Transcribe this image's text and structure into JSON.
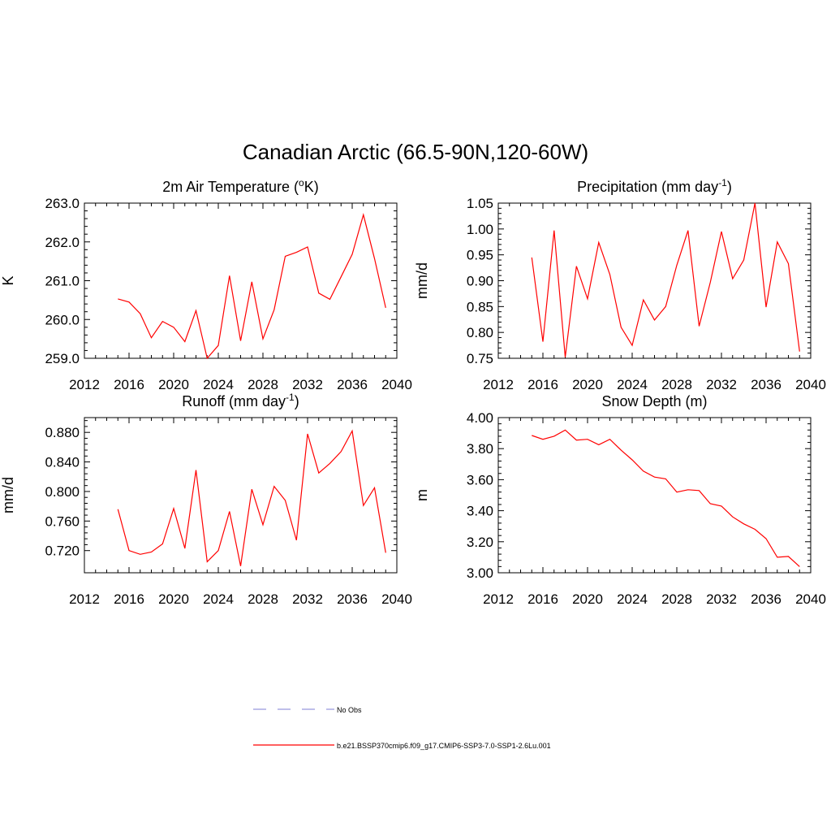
{
  "figure": {
    "title": "Canadian Arctic (66.5-90N,120-60W)"
  },
  "legend": {
    "entries": [
      {
        "label": "No Obs",
        "color": "#9999dd",
        "style": "dashed"
      },
      {
        "label": "b.e21.BSSP370cmip6.f09_g17.CMIP6-SSP3-7.0-SSP1-2.6Lu.001",
        "color": "#ff0000",
        "style": "solid"
      }
    ]
  },
  "chart_data": [
    {
      "type": "line",
      "title": "2m Air Temperature (",
      "title_sup": "o",
      "title_tail": "K)",
      "ylabel": "K",
      "xlim": [
        2012,
        2040
      ],
      "ylim": [
        259.0,
        263.0
      ],
      "xticks": [
        "2012",
        "2016",
        "2020",
        "2024",
        "2028",
        "2032",
        "2036",
        "2040"
      ],
      "yticks": [
        "259.0",
        "260.0",
        "261.0",
        "262.0",
        "263.0"
      ],
      "series": [
        {
          "color": "#ff0000",
          "x": [
            2015,
            2016,
            2017,
            2018,
            2019,
            2020,
            2021,
            2022,
            2023,
            2024,
            2025,
            2026,
            2027,
            2028,
            2029,
            2030,
            2031,
            2032,
            2033,
            2034,
            2035,
            2036,
            2037,
            2038,
            2039
          ],
          "y": [
            260.53,
            260.45,
            260.15,
            259.53,
            259.95,
            259.8,
            259.43,
            260.23,
            259.0,
            259.33,
            261.13,
            259.45,
            260.97,
            259.5,
            260.25,
            261.63,
            261.73,
            261.87,
            260.68,
            260.52,
            261.1,
            261.68,
            262.7,
            261.57,
            260.3
          ]
        }
      ]
    },
    {
      "type": "line",
      "title": "Precipitation (mm day",
      "title_sup": "-1",
      "title_tail": ")",
      "ylabel": "mm/d",
      "xlim": [
        2012,
        2040
      ],
      "ylim": [
        0.75,
        1.05
      ],
      "xticks": [
        "2012",
        "2016",
        "2020",
        "2024",
        "2028",
        "2032",
        "2036",
        "2040"
      ],
      "yticks": [
        "0.75",
        "0.80",
        "0.85",
        "0.90",
        "0.95",
        "1.00",
        "1.05"
      ],
      "series": [
        {
          "color": "#ff0000",
          "x": [
            2015,
            2016,
            2017,
            2018,
            2019,
            2020,
            2021,
            2022,
            2023,
            2024,
            2025,
            2026,
            2027,
            2028,
            2029,
            2030,
            2031,
            2032,
            2033,
            2034,
            2035,
            2036,
            2037,
            2038,
            2039
          ],
          "y": [
            0.945,
            0.782,
            0.997,
            0.752,
            0.928,
            0.865,
            0.974,
            0.912,
            0.81,
            0.775,
            0.863,
            0.824,
            0.85,
            0.93,
            0.997,
            0.812,
            0.897,
            0.995,
            0.904,
            0.94,
            1.05,
            0.849,
            0.975,
            0.933,
            0.763
          ]
        }
      ]
    },
    {
      "type": "line",
      "title": "Runoff (mm day",
      "title_sup": "-1",
      "title_tail": ")",
      "ylabel": "mm/d",
      "xlim": [
        2012,
        2040
      ],
      "ylim": [
        0.69,
        0.9
      ],
      "xticks": [
        "2012",
        "2016",
        "2020",
        "2024",
        "2028",
        "2032",
        "2036",
        "2040"
      ],
      "yticks": [
        "0.720",
        "0.760",
        "0.800",
        "0.840",
        "0.880"
      ],
      "yticks_values": [
        0.72,
        0.76,
        0.8,
        0.84,
        0.88
      ],
      "series": [
        {
          "color": "#ff0000",
          "x": [
            2015,
            2016,
            2017,
            2018,
            2019,
            2020,
            2021,
            2022,
            2023,
            2024,
            2025,
            2026,
            2027,
            2028,
            2029,
            2030,
            2031,
            2032,
            2033,
            2034,
            2035,
            2036,
            2037,
            2038,
            2039
          ],
          "y": [
            0.776,
            0.72,
            0.715,
            0.718,
            0.729,
            0.777,
            0.723,
            0.829,
            0.705,
            0.72,
            0.773,
            0.699,
            0.803,
            0.755,
            0.807,
            0.788,
            0.734,
            0.878,
            0.825,
            0.838,
            0.854,
            0.882,
            0.781,
            0.805,
            0.717
          ]
        }
      ]
    },
    {
      "type": "line",
      "title": "Snow Depth (m)",
      "title_sup": "",
      "title_tail": "",
      "ylabel": "m",
      "xlim": [
        2012,
        2040
      ],
      "ylim": [
        3.0,
        4.0
      ],
      "xticks": [
        "2012",
        "2016",
        "2020",
        "2024",
        "2028",
        "2032",
        "2036",
        "2040"
      ],
      "yticks": [
        "3.00",
        "3.20",
        "3.40",
        "3.60",
        "3.80",
        "4.00"
      ],
      "series": [
        {
          "color": "#ff0000",
          "x": [
            2015,
            2016,
            2017,
            2018,
            2019,
            2020,
            2021,
            2022,
            2023,
            2024,
            2025,
            2026,
            2027,
            2028,
            2029,
            2030,
            2031,
            2032,
            2033,
            2034,
            2035,
            2036,
            2037,
            2038,
            2039
          ],
          "y": [
            3.885,
            3.86,
            3.88,
            3.92,
            3.855,
            3.86,
            3.825,
            3.86,
            3.79,
            3.728,
            3.655,
            3.617,
            3.605,
            3.52,
            3.535,
            3.53,
            3.445,
            3.43,
            3.36,
            3.315,
            3.28,
            3.22,
            3.1,
            3.105,
            3.04
          ]
        }
      ]
    }
  ]
}
